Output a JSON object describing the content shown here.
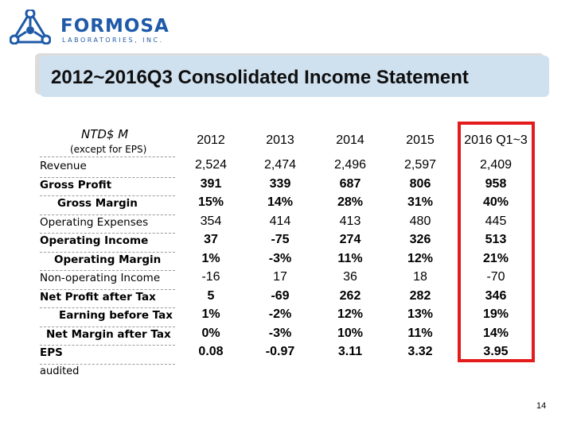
{
  "logo": {
    "name": "FORMOSA",
    "subtitle": "LABORATORIES, INC."
  },
  "title": "2012~2016Q3 Consolidated Income Statement",
  "table": {
    "unit_label": "NTD$ M",
    "unit_note": "(except for EPS)",
    "columns": [
      "2012",
      "2013",
      "2014",
      "2015",
      "2016 Q1~3"
    ],
    "rows": [
      {
        "label": "Revenue",
        "values": [
          "2,524",
          "2,474",
          "2,496",
          "2,597",
          "2,409"
        ]
      },
      {
        "label": "Gross Profit",
        "values": [
          "391",
          "339",
          "687",
          "806",
          "958"
        ]
      },
      {
        "label": "Gross Margin",
        "values": [
          "15%",
          "14%",
          "28%",
          "31%",
          "40%"
        ]
      },
      {
        "label": "Operating Expenses",
        "values": [
          "354",
          "414",
          "413",
          "480",
          "445"
        ]
      },
      {
        "label": "Operating Income",
        "values": [
          "37",
          "-75",
          "274",
          "326",
          "513"
        ]
      },
      {
        "label": "Operating Margin",
        "values": [
          "1%",
          "-3%",
          "11%",
          "12%",
          "21%"
        ]
      },
      {
        "label": "Non-operating Income",
        "values": [
          "-16",
          "17",
          "36",
          "18",
          "-70"
        ]
      },
      {
        "label": "Net Profit after Tax",
        "values": [
          "5",
          "-69",
          "262",
          "282",
          "346"
        ]
      },
      {
        "label": "Earning before Tax",
        "values": [
          "1%",
          "-2%",
          "12%",
          "13%",
          "19%"
        ]
      },
      {
        "label": "Net Margin after Tax",
        "values": [
          "0%",
          "-3%",
          "10%",
          "11%",
          "14%"
        ]
      },
      {
        "label": "EPS",
        "values": [
          "0.08",
          "-0.97",
          "3.11",
          "3.32",
          "3.95"
        ]
      }
    ]
  },
  "footnote": "audited",
  "page_number": "14",
  "colors": {
    "brand": "#1e5aa8",
    "title_band": "#cfe0ef",
    "highlight": "#e31b1b"
  }
}
